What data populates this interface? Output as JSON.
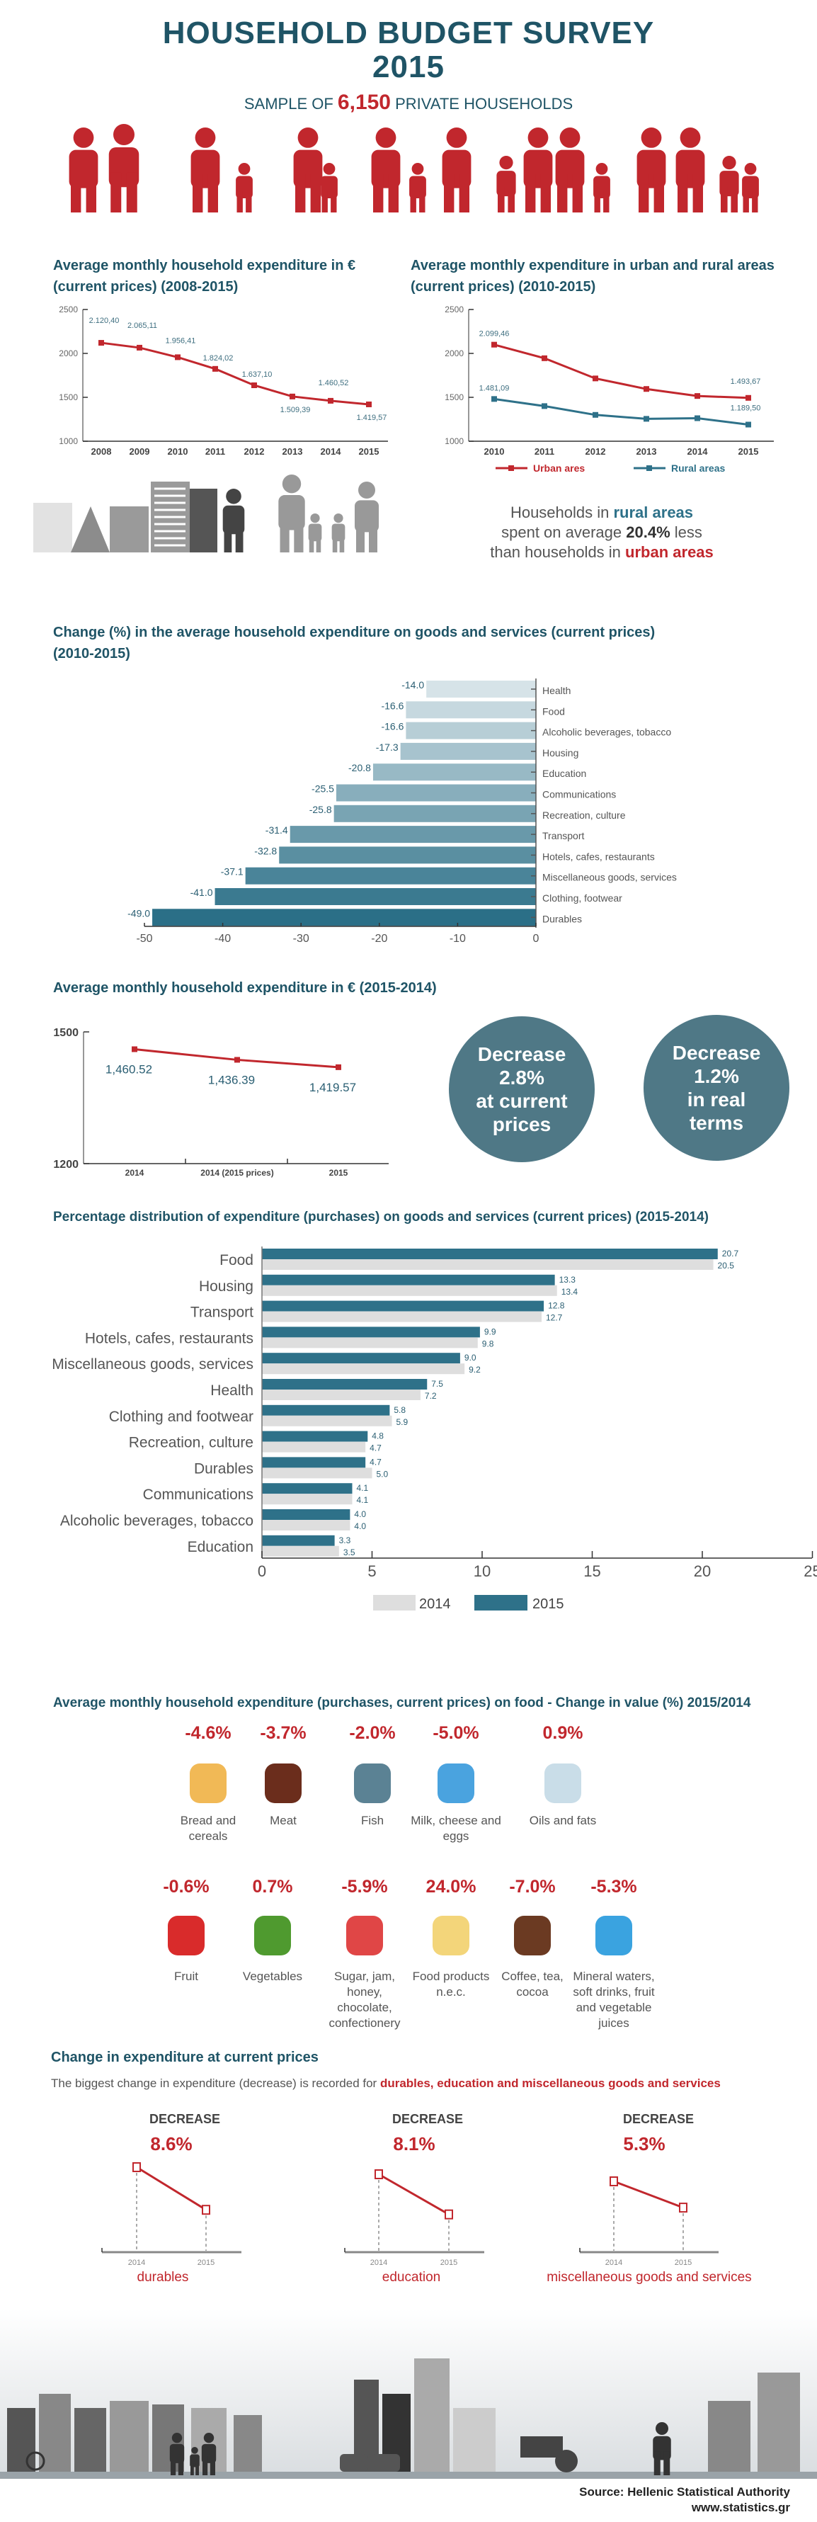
{
  "header": {
    "title_line1": "HOUSEHOLD BUDGET SURVEY",
    "title_line2": "2015",
    "sample_prefix": "SAMPLE OF ",
    "sample_number": "6,150",
    "sample_suffix": " PRIVATE HOUSEHOLDS"
  },
  "colors": {
    "title": "#1f5466",
    "red": "#c1272d",
    "teal": "#2e7189",
    "circle": "#4f7886",
    "grey_bar": "#dedede"
  },
  "rural_note": {
    "l1a": "Households in ",
    "l1b": "rural areas",
    "l2a": "spent on average ",
    "l2b": "20.4%",
    "l2c": " less",
    "l3a": "than households in ",
    "l3b": "urban areas"
  },
  "circles": [
    {
      "lines": [
        "Decrease",
        "2.8%",
        "at current",
        "prices"
      ]
    },
    {
      "lines": [
        "Decrease",
        "1.2%",
        "in real",
        "terms"
      ]
    }
  ],
  "chart_data": [
    {
      "type": "line",
      "title": "Average monthly household expenditure in € (current prices) (2008-2015)",
      "x": [
        "2008",
        "2009",
        "2010",
        "2011",
        "2012",
        "2013",
        "2014",
        "2015"
      ],
      "values": [
        2120.4,
        2065.11,
        1956.41,
        1824.02,
        1637.1,
        1509.39,
        1460.52,
        1419.57
      ],
      "labels": [
        "2.120,40",
        "2.065,11",
        "1.956,41",
        "1.824,02",
        "1.637,10",
        "1.509,39",
        "1.460,52",
        "1.419,57"
      ],
      "ylim": [
        1000,
        2500
      ],
      "yticks": [
        "1000",
        "1500",
        "2000",
        "2500"
      ],
      "color": "#c1272d"
    },
    {
      "type": "line",
      "title": "Average monthly expenditure in urban and rural areas (current prices) (2010-2015)",
      "x": [
        "2010",
        "2011",
        "2012",
        "2013",
        "2014",
        "2015"
      ],
      "ylim": [
        1000,
        2500
      ],
      "yticks": [
        "1000",
        "1500",
        "2000",
        "2500"
      ],
      "series": [
        {
          "name": "Urban ares",
          "color": "#c1272d",
          "values": [
            2099.46,
            1945,
            1715,
            1595,
            1515,
            1493.67
          ],
          "end_labels": [
            "2.099,46",
            "1.493,67"
          ]
        },
        {
          "name": "Rural areas",
          "color": "#2e7189",
          "values": [
            1481.09,
            1400,
            1300,
            1255,
            1262,
            1189.5
          ],
          "end_labels": [
            "1.481,09",
            "1.189,50"
          ]
        }
      ],
      "legend": "bottom"
    },
    {
      "type": "bar",
      "orientation": "horizontal",
      "title": "Change (%) in the average household expenditure on goods and services (current prices) (2010-2015)",
      "categories": [
        "Health",
        "Food",
        "Alcoholic beverages, tobacco",
        "Housing",
        "Education",
        "Communications",
        "Recreation, culture",
        "Transport",
        "Hotels, cafes, restaurants",
        "Miscellaneous goods, services",
        "Clothing, footwear",
        "Durables"
      ],
      "values": [
        -14.0,
        -16.6,
        -16.6,
        -17.3,
        -20.8,
        -25.5,
        -25.8,
        -31.4,
        -32.8,
        -37.1,
        -41.0,
        -49.0
      ],
      "labels": [
        "-14.0",
        "-16.6",
        "-16.6",
        "-17.3",
        "-20.8",
        "-25.5",
        "-25.8",
        "-31.4",
        "-32.8",
        "-37.1",
        "-41.0",
        "-49.0"
      ],
      "xlim": [
        -50,
        0
      ],
      "xticks": [
        "-50",
        "-40",
        "-30",
        "-20",
        "-10",
        "0"
      ],
      "color_light": "#d6e3e8",
      "color_dark": "#2b6f87"
    },
    {
      "type": "line",
      "title": "Average monthly household expenditure in € (2015-2014)",
      "x": [
        "2014",
        "2014 (2015 prices)",
        "2015"
      ],
      "values": [
        1460.52,
        1436.39,
        1419.57
      ],
      "labels": [
        "1,460.52",
        "1,436.39",
        "1,419.57"
      ],
      "ylim": [
        1200,
        1500
      ],
      "yticks": [
        "1200",
        "1500"
      ],
      "color": "#c1272d"
    },
    {
      "type": "bar",
      "orientation": "horizontal",
      "title": "Percentage distribution of expenditure (purchases) on goods and services (current prices) (2015-2014)",
      "categories": [
        "Food",
        "Housing",
        "Transport",
        "Hotels, cafes, restaurants",
        "Miscellaneous goods, services",
        "Health",
        "Clothing and footwear",
        "Recreation, culture",
        "Durables",
        "Communications",
        "Alcoholic beverages, tobacco",
        "Education"
      ],
      "series": [
        {
          "name": "2015",
          "color": "#2e7189",
          "values": [
            20.7,
            13.3,
            12.8,
            9.9,
            9.0,
            7.5,
            5.8,
            4.8,
            4.7,
            4.1,
            4.0,
            3.3
          ],
          "labels": [
            "20.7",
            "13.3",
            "12.8",
            "9.9",
            "9.0",
            "7.5",
            "5.8",
            "4.8",
            "4.7",
            "4.1",
            "4.0",
            "3.3"
          ]
        },
        {
          "name": "2014",
          "color": "#dedede",
          "values": [
            20.5,
            13.4,
            12.7,
            9.8,
            9.2,
            7.2,
            5.9,
            4.7,
            5.0,
            4.1,
            4.0,
            3.5
          ],
          "labels": [
            "20.5",
            "13.4",
            "12.7",
            "9.8",
            "9.2",
            "7.2",
            "5.9",
            "4.7",
            "5.0",
            "4.1",
            "4.0",
            "3.5"
          ]
        }
      ],
      "xlim": [
        0,
        25
      ],
      "xticks": [
        "0",
        "5",
        "10",
        "15",
        "20",
        "25"
      ],
      "legend": [
        "2014",
        "2015"
      ],
      "legend_placement": "bottom"
    }
  ],
  "food": {
    "title": "Average monthly household expenditure (purchases, current prices) on food - Change in value (%) 2015/2014",
    "row1": [
      {
        "pct": "-4.6%",
        "label": "Bread and cereals",
        "icon": "bread-icon"
      },
      {
        "pct": "-3.7%",
        "label": "Meat",
        "icon": "meat-icon"
      },
      {
        "pct": "-2.0%",
        "label": "Fish",
        "icon": "fish-icon"
      },
      {
        "pct": "-5.0%",
        "label": "Milk, cheese and eggs",
        "icon": "milk-icon"
      },
      {
        "pct": "0.9%",
        "label": "Oils and fats",
        "icon": "oil-icon"
      }
    ],
    "row2": [
      {
        "pct": "-0.6%",
        "label": "Fruit",
        "icon": "fruit-icon"
      },
      {
        "pct": "0.7%",
        "label": "Vegetables",
        "icon": "vegetables-icon"
      },
      {
        "pct": "-5.9%",
        "label": "Sugar, jam, honey, chocolate, confectionery",
        "icon": "jam-icon"
      },
      {
        "pct": "24.0%",
        "label": "Food products n.e.c.",
        "icon": "cake-icon"
      },
      {
        "pct": "-7.0%",
        "label": "Coffee, tea, cocoa",
        "icon": "coffee-icon"
      },
      {
        "pct": "-5.3%",
        "label": "Mineral waters, soft drinks, fruit and vegetable juices",
        "icon": "water-bottle-icon"
      }
    ]
  },
  "change": {
    "title": "Change in expenditure at current prices",
    "subtitle_prefix": "The biggest change in expenditure (decrease) is recorded for ",
    "subtitle_highlight": "durables, education and miscellaneous goods and services",
    "years": [
      "2014",
      "2015"
    ],
    "items": [
      {
        "heading": "DECREASE",
        "pct": "8.6%",
        "value": 8.6,
        "label": "durables"
      },
      {
        "heading": "DECREASE",
        "pct": "8.1%",
        "value": 8.1,
        "label": "education"
      },
      {
        "heading": "DECREASE",
        "pct": "5.3%",
        "value": 5.3,
        "label": "miscellaneous goods and services"
      }
    ]
  },
  "footer": {
    "source": "Source: Hellenic Statistical Authority",
    "url": "www.statistics.gr"
  }
}
